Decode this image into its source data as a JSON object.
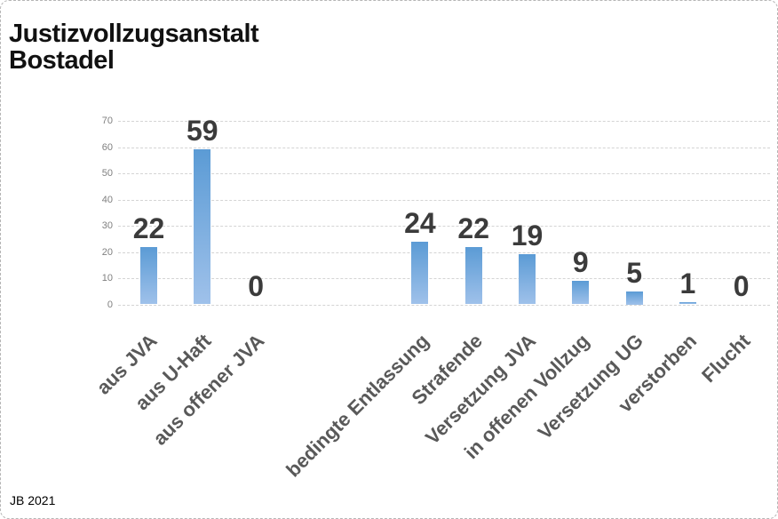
{
  "chart_data": {
    "type": "bar",
    "title": "Justizvollzugsanstalt Bostadel",
    "footnote": "JB 2021",
    "categories": [
      "aus JVA",
      "aus U-Haft",
      "aus offener JVA",
      "bedingte Entlassung",
      "Strafende",
      "Versetzung JVA",
      "in offenen Vollzug",
      "Versetzung UG",
      "verstorben",
      "Flucht"
    ],
    "values": [
      22,
      59,
      0,
      24,
      22,
      19,
      9,
      5,
      1,
      0
    ],
    "xlabel": "",
    "ylabel": "",
    "ylim": [
      0,
      70
    ],
    "ytick_step": 10,
    "yticks": [
      0,
      10,
      20,
      30,
      40,
      50,
      60,
      70
    ],
    "grid": true,
    "legend": false,
    "data_labels": true,
    "category_label_rotation_deg": 45,
    "gap_after_category_index": 2,
    "colors": {
      "bar_top": "#5b9bd5",
      "bar_bottom": "#9fc1ea",
      "data_label": "#3b3b3b",
      "category_label": "#595959",
      "tick_label": "#7f7f7f",
      "gridline": "#d4d4d4",
      "border": "#b5b5b5"
    }
  }
}
